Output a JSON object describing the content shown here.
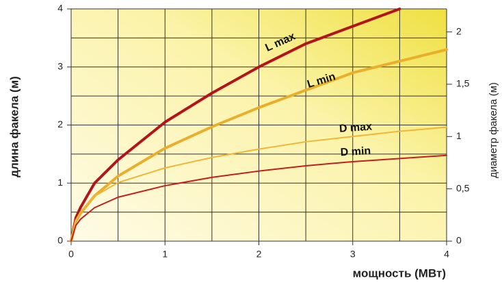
{
  "chart_data": {
    "type": "line",
    "x_label": "мощность (МВт)",
    "y_label": "длина факела (м)",
    "y2_label": "диаметр факела (м)",
    "x": [
      0,
      0.05,
      0.1,
      0.25,
      0.5,
      1,
      1.5,
      2,
      2.5,
      3,
      3.5,
      4
    ],
    "series": [
      {
        "name": "L max",
        "color": "#b3141b",
        "width": 4,
        "values": [
          0,
          0.4,
          0.58,
          1.0,
          1.4,
          2.05,
          2.55,
          3.0,
          3.4,
          3.7,
          4.0,
          null
        ]
      },
      {
        "name": "L min",
        "color": "#e8ae2c",
        "width": 4,
        "values": [
          0,
          0.34,
          0.48,
          0.78,
          1.12,
          1.6,
          1.97,
          2.3,
          2.6,
          2.9,
          3.1,
          3.3
        ]
      },
      {
        "name": "D max",
        "color": "#efb638",
        "width": 2,
        "axis": "y2",
        "values": [
          0,
          0.2,
          0.28,
          0.43,
          0.56,
          0.7,
          0.8,
          0.88,
          0.95,
          1.0,
          1.05,
          1.09
        ]
      },
      {
        "name": "D min",
        "color": "#c41e1e",
        "width": 2,
        "axis": "y2",
        "values": [
          0,
          0.15,
          0.21,
          0.32,
          0.42,
          0.53,
          0.61,
          0.67,
          0.72,
          0.76,
          0.79,
          0.82
        ]
      }
    ],
    "xlim": [
      0,
      4
    ],
    "xticks": [
      0,
      1,
      2,
      3,
      4
    ],
    "ylim": [
      0,
      4
    ],
    "yticks": [
      0,
      1,
      2,
      3,
      4
    ],
    "y2lim": [
      0,
      2.22
    ],
    "y2ticks": [
      0,
      {
        "value": 0.5,
        "label": "0,5"
      },
      1,
      {
        "value": 1.5,
        "label": "1,5"
      },
      2
    ],
    "xgrid": [
      0.5,
      1,
      1.5,
      2,
      2.5,
      3,
      3.5,
      4
    ],
    "ygrid": [
      0.5,
      1,
      1.5,
      2,
      2.5,
      3,
      3.5,
      4
    ]
  }
}
